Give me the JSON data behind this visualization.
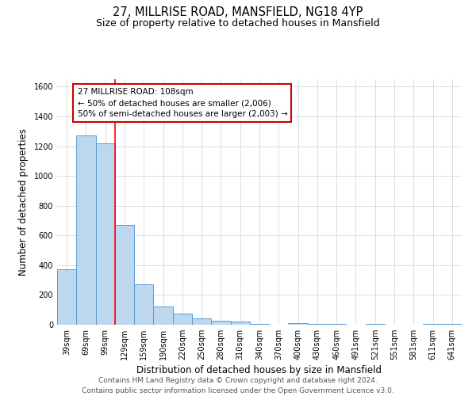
{
  "title": "27, MILLRISE ROAD, MANSFIELD, NG18 4YP",
  "subtitle": "Size of property relative to detached houses in Mansfield",
  "xlabel": "Distribution of detached houses by size in Mansfield",
  "ylabel": "Number of detached properties",
  "footer_line1": "Contains HM Land Registry data © Crown copyright and database right 2024.",
  "footer_line2": "Contains public sector information licensed under the Open Government Licence v3.0.",
  "bar_labels": [
    "39sqm",
    "69sqm",
    "99sqm",
    "129sqm",
    "159sqm",
    "190sqm",
    "220sqm",
    "250sqm",
    "280sqm",
    "310sqm",
    "340sqm",
    "370sqm",
    "400sqm",
    "430sqm",
    "460sqm",
    "491sqm",
    "521sqm",
    "551sqm",
    "581sqm",
    "611sqm",
    "641sqm"
  ],
  "bar_values": [
    370,
    1270,
    1220,
    670,
    270,
    120,
    75,
    40,
    25,
    20,
    5,
    0,
    10,
    5,
    5,
    0,
    5,
    0,
    0,
    5,
    5
  ],
  "bar_color": "#bdd7ee",
  "bar_edge_color": "#5b9bd5",
  "red_line_x": 2.5,
  "annotation_line1": "27 MILLRISE ROAD: 108sqm",
  "annotation_line2": "← 50% of detached houses are smaller (2,006)",
  "annotation_line3": "50% of semi-detached houses are larger (2,003) →",
  "annotation_box_color": "#ffffff",
  "annotation_box_edge": "#cc0000",
  "ylim": [
    0,
    1650
  ],
  "yticks": [
    0,
    200,
    400,
    600,
    800,
    1000,
    1200,
    1400,
    1600
  ],
  "background_color": "#ffffff",
  "grid_color": "#d0d0d0",
  "title_fontsize": 10.5,
  "subtitle_fontsize": 9,
  "label_fontsize": 8.5,
  "tick_fontsize": 7,
  "footer_fontsize": 6.5,
  "annotation_fontsize": 7.5
}
